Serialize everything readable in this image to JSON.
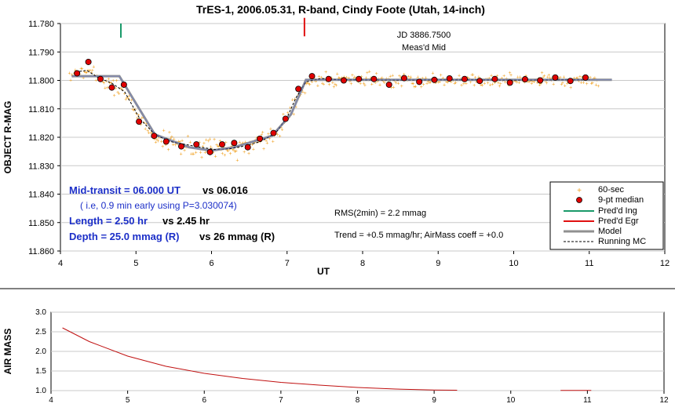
{
  "colors": {
    "raw": "#f0a020",
    "median": "#e00000",
    "ingress": "#1a9a6a",
    "egress": "#e01010",
    "model": "#909090",
    "running": "#000000",
    "airmass": "#c01010",
    "annotation_blue": "#1c2fc8"
  },
  "chart_data": [
    {
      "type": "scatter",
      "title": "TrES-1, 2006.05.31, R-band, Cindy Foote (Utah, 14-inch)",
      "xlabel": "UT",
      "ylabel": "OBJECT R-MAG",
      "xlim": [
        4,
        12
      ],
      "ylim": [
        11.78,
        11.86
      ],
      "y_inverted": true,
      "grid": "horizontal",
      "legend_position": "lower-right",
      "x_ticks": [
        "4",
        "5",
        "6",
        "7",
        "8",
        "9",
        "10",
        "11",
        "12"
      ],
      "y_ticks": [
        "11.780",
        "11.790",
        "11.800",
        "11.810",
        "11.820",
        "11.830",
        "11.840",
        "11.850",
        "11.860"
      ],
      "legend": [
        "60-sec",
        "9-pt median",
        "Pred'd Ing",
        "Pred'd Egr",
        "Model",
        "Running MC"
      ],
      "series": [
        {
          "name": "9-pt median",
          "x": [
            4.22,
            4.37,
            4.53,
            4.68,
            4.84,
            5.04,
            5.24,
            5.4,
            5.6,
            5.8,
            5.98,
            6.14,
            6.3,
            6.48,
            6.64,
            6.82,
            6.98,
            7.15,
            7.33,
            7.55,
            7.75,
            7.95,
            8.15,
            8.35,
            8.55,
            8.75,
            8.95,
            9.15,
            9.35,
            9.55,
            9.75,
            9.95,
            10.15,
            10.35,
            10.55,
            10.75,
            10.95
          ],
          "y": [
            11.7975,
            11.7935,
            11.7995,
            11.8025,
            11.8015,
            11.8145,
            11.8195,
            11.8215,
            11.8232,
            11.8225,
            11.8252,
            11.8225,
            11.822,
            11.8235,
            11.8205,
            11.8185,
            11.8135,
            11.803,
            11.7985,
            11.7995,
            11.8,
            11.7995,
            11.7995,
            11.8015,
            11.7992,
            11.8005,
            11.7998,
            11.7993,
            11.7995,
            11.8002,
            11.7995,
            11.8008,
            11.7996,
            11.8,
            11.799,
            11.8002,
            11.799
          ]
        },
        {
          "name": "Model",
          "x": [
            4.15,
            4.78,
            5.25,
            5.7,
            6.0,
            6.3,
            6.8,
            7.05,
            7.25,
            11.3
          ],
          "y": [
            11.7985,
            11.7985,
            11.819,
            11.8235,
            11.8247,
            11.8235,
            11.8195,
            11.812,
            11.7998,
            11.7998
          ]
        },
        {
          "name": "Running MC",
          "x": [
            4.2,
            4.35,
            4.5,
            4.68,
            4.85,
            5.05,
            5.25,
            5.45,
            5.65,
            5.85,
            6.05,
            6.25,
            6.45,
            6.65,
            6.85,
            7.0,
            7.12,
            7.25,
            7.45,
            7.7,
            8.0,
            8.5,
            9.0,
            9.5,
            10.0,
            10.5,
            11.0
          ],
          "y": [
            11.797,
            11.7965,
            11.799,
            11.801,
            11.804,
            11.8135,
            11.819,
            11.8215,
            11.8225,
            11.8235,
            11.8243,
            11.824,
            11.823,
            11.8215,
            11.8185,
            11.813,
            11.806,
            11.8005,
            11.7993,
            11.7998,
            11.7998,
            11.7999,
            11.7998,
            11.7998,
            11.7999,
            11.7998,
            11.7998
          ]
        },
        {
          "name": "Pred'd Ing",
          "x": [
            4.8,
            4.8
          ],
          "y": [
            11.78,
            11.785
          ]
        },
        {
          "name": "Pred'd Egr",
          "x": [
            7.23,
            7.23
          ],
          "y": [
            11.778,
            11.7845
          ]
        }
      ],
      "annotations": {
        "jd_label": "JD 3886.7500",
        "meas_label": "Meas'd Mid",
        "mid_transit_measured": "Mid-transit = 06.000 UT",
        "mid_transit_predicted": "vs 06.016",
        "early_note": "( i.e, 0.9 min early using P=3.030074)",
        "length_measured": "Length = 2.50 hr",
        "length_predicted": "vs 2.45 hr",
        "depth_measured": "Depth = 25.0 mmag (R)",
        "depth_predicted": "vs 26 mmag (R)",
        "rms": "RMS(2min) = 2.2 mmag",
        "trend": "Trend = +0.5 mmag/hr; AirMass coeff = +0.0"
      }
    },
    {
      "type": "line",
      "ylabel": "AIR MASS",
      "xlim": [
        4,
        12
      ],
      "ylim": [
        1.0,
        3.0
      ],
      "grid": "horizontal",
      "x_ticks": [
        "4",
        "5",
        "6",
        "7",
        "8",
        "9",
        "10",
        "11",
        "12"
      ],
      "y_ticks": [
        "1.0",
        "1.5",
        "2.0",
        "2.5",
        "3.0"
      ],
      "series": [
        {
          "x": [
            4.15,
            4.5,
            5.0,
            5.5,
            6.0,
            6.5,
            7.0,
            7.5,
            8.0,
            8.5,
            9.0,
            9.3,
            10.65,
            11.05
          ],
          "y": [
            2.6,
            2.25,
            1.88,
            1.62,
            1.44,
            1.31,
            1.21,
            1.14,
            1.08,
            1.04,
            1.015,
            1.01,
            1.005,
            1.005
          ]
        }
      ]
    }
  ]
}
